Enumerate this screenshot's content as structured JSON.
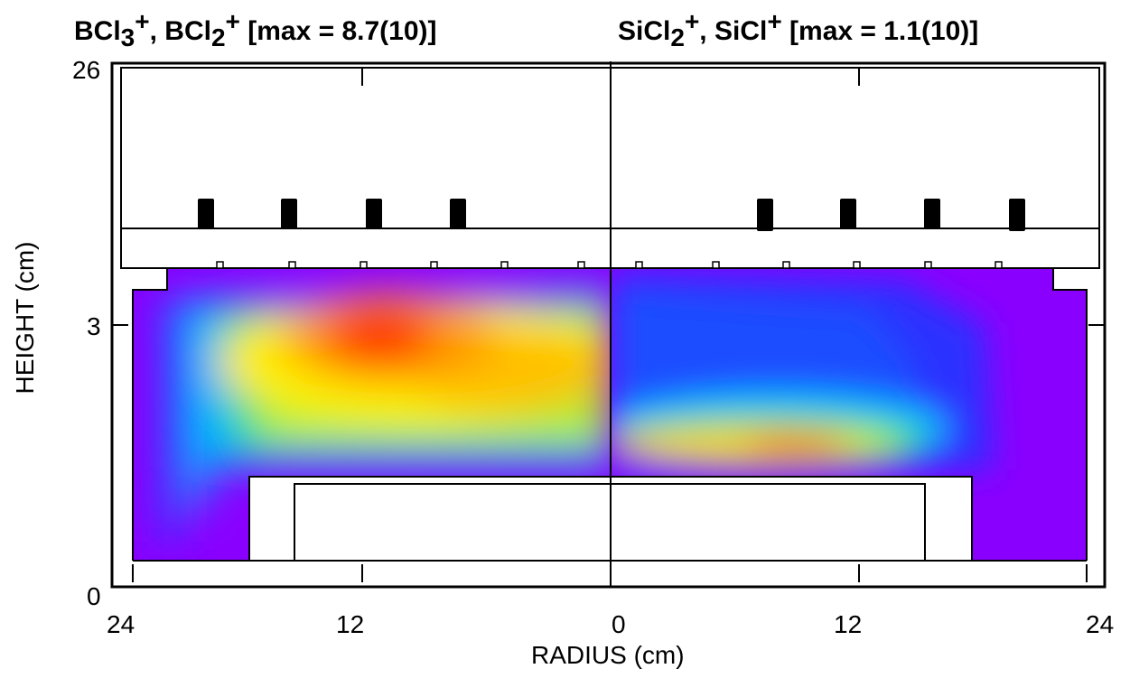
{
  "panels": {
    "left": {
      "species_a": "BCl",
      "sub_a": "3",
      "sup_a": "+",
      "sep": ", ",
      "species_b": "BCl",
      "sub_b": "2",
      "sup_b": "+",
      "max_text": " [max = 8.7(10)]"
    },
    "right": {
      "species_a": "SiCl",
      "sub_a": "2",
      "sup_a": "+",
      "sep": ", ",
      "species_b": "SiCl",
      "sub_b": "",
      "sup_b": "+",
      "max_text": " [max = 1.1(10)]"
    }
  },
  "chart_data": {
    "type": "heatmap",
    "xlabel": "RADIUS (cm)",
    "ylabel": "HEIGHT (cm)",
    "x_ticks": [
      "24",
      "12",
      "0",
      "12",
      "24"
    ],
    "y_ticks": [
      "26",
      "3",
      "0"
    ],
    "left_panel": {
      "species": [
        "BCl3+",
        "BCl2+"
      ],
      "max": "8.7(10)",
      "peak_radius_cm": 12,
      "peak_height_cm": 3
    },
    "right_panel": {
      "species": [
        "SiCl2+",
        "SiCl+"
      ],
      "max": "1.1(10)",
      "peak_radius_cm": 9,
      "peak_height_cm": 1.7
    },
    "colormap": [
      "#8a00ff",
      "#2233ff",
      "#00c8ff",
      "#00e060",
      "#ffff00",
      "#ff9900",
      "#ff1a00"
    ]
  }
}
